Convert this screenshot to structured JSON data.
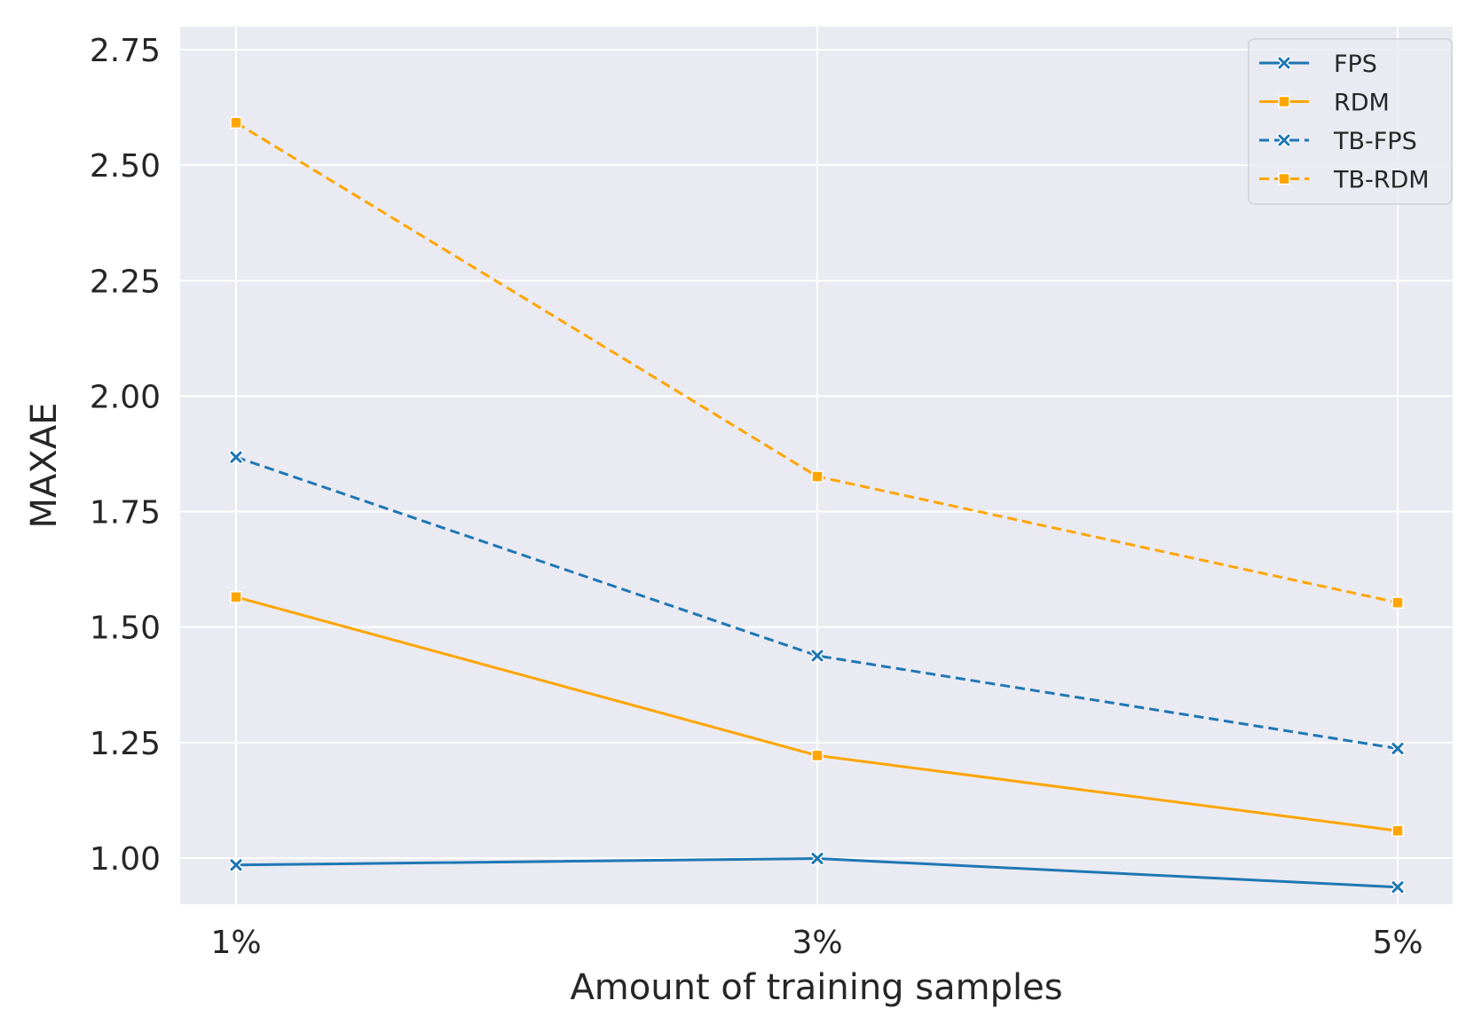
{
  "chart_data": {
    "type": "line",
    "title": "",
    "xlabel": "Amount of training samples",
    "ylabel": "MAXAE",
    "categories": [
      "1%",
      "3%",
      "5%"
    ],
    "ylim": [
      0.9,
      2.8
    ],
    "yticks": [
      1.0,
      1.25,
      1.5,
      1.75,
      2.0,
      2.25,
      2.5,
      2.75
    ],
    "ytick_labels": [
      "1.00",
      "1.25",
      "1.50",
      "1.75",
      "2.00",
      "2.25",
      "2.50",
      "2.75"
    ],
    "grid": true,
    "legend_position": "top-right",
    "series": [
      {
        "name": "FPS",
        "values": [
          0.985,
          0.999,
          0.937
        ],
        "color": "#1f77b4",
        "linestyle": "solid",
        "marker": "x"
      },
      {
        "name": "RDM",
        "values": [
          1.565,
          1.222,
          1.059
        ],
        "color": "#ffa500",
        "linestyle": "solid",
        "marker": "square"
      },
      {
        "name": "TB-FPS",
        "values": [
          1.868,
          1.438,
          1.237
        ],
        "color": "#1f77b4",
        "linestyle": "dashed",
        "marker": "x"
      },
      {
        "name": "TB-RDM",
        "values": [
          2.592,
          1.826,
          1.553
        ],
        "color": "#ffa500",
        "linestyle": "dashed",
        "marker": "square"
      }
    ]
  }
}
